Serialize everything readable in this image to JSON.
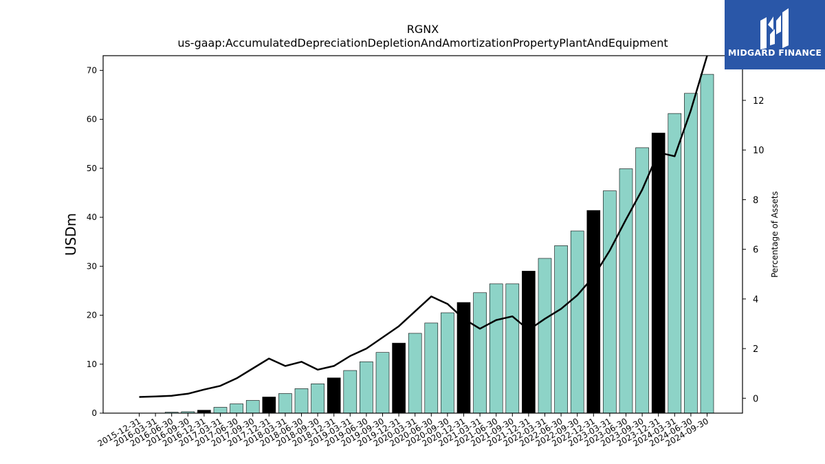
{
  "header": {
    "title": "RGNX",
    "subtitle": "us-gaap:AccumulatedDepreciationDepletionAndAmortizationPropertyPlantAndEquipment"
  },
  "logo": {
    "name": "MIDGARD FINANCE",
    "icon": "midgard-logo-icon",
    "background": "#2a57a8"
  },
  "chart_data": {
    "type": "bar",
    "title": "RGNX",
    "subtitle": "us-gaap:AccumulatedDepreciationDepletionAndAmortizationPropertyPlantAndEquipment",
    "ylabel": "USDm",
    "y2label": "Percentage of Assets",
    "ylim": [
      0,
      73
    ],
    "y2lim": [
      -0.6,
      13.8
    ],
    "yticks": [
      0,
      10,
      20,
      30,
      40,
      50,
      60,
      70
    ],
    "y2ticks": [
      0,
      2,
      4,
      6,
      8,
      10,
      12
    ],
    "grid": false,
    "colors": {
      "bar": "#8dd3c7",
      "bar_q4": "#000000",
      "line": "#000000"
    },
    "categories": [
      "2015-12-31",
      "2016-03-31",
      "2016-06-30",
      "2016-09-30",
      "2016-12-31",
      "2017-03-31",
      "2017-06-30",
      "2017-09-30",
      "2017-12-31",
      "2018-03-31",
      "2018-06-30",
      "2018-09-30",
      "2018-12-31",
      "2019-03-31",
      "2019-06-30",
      "2019-09-30",
      "2019-12-31",
      "2020-03-31",
      "2020-06-30",
      "2020-09-30",
      "2020-12-31",
      "2021-03-31",
      "2021-06-30",
      "2021-09-30",
      "2021-12-31",
      "2022-03-31",
      "2022-06-30",
      "2022-09-30",
      "2022-12-31",
      "2023-03-31",
      "2023-06-30",
      "2023-09-30",
      "2023-12-31",
      "2024-03-31",
      "2024-06-30",
      "2024-09-30"
    ],
    "series": [
      {
        "type": "bar",
        "axis": "left",
        "values": [
          0,
          0,
          0.2,
          0.3,
          0.6,
          1.2,
          1.9,
          2.6,
          3.3,
          4.0,
          5.0,
          6.0,
          7.2,
          8.7,
          10.5,
          12.4,
          14.3,
          16.3,
          18.4,
          20.5,
          22.6,
          24.6,
          26.4,
          26.4,
          29.0,
          31.6,
          34.2,
          37.2,
          41.4,
          45.4,
          49.9,
          54.2,
          57.2,
          61.2,
          65.3,
          69.2
        ]
      },
      {
        "type": "line",
        "axis": "right",
        "values": [
          0.05,
          0.07,
          0.1,
          0.18,
          0.35,
          0.5,
          0.8,
          1.2,
          1.6,
          1.3,
          1.47,
          1.15,
          1.3,
          1.7,
          2.0,
          2.45,
          2.9,
          3.5,
          4.1,
          3.8,
          3.2,
          2.8,
          3.15,
          3.3,
          2.75,
          3.2,
          3.6,
          4.15,
          4.9,
          5.95,
          7.2,
          8.4,
          9.9,
          9.75,
          11.6,
          13.8
        ]
      }
    ]
  }
}
